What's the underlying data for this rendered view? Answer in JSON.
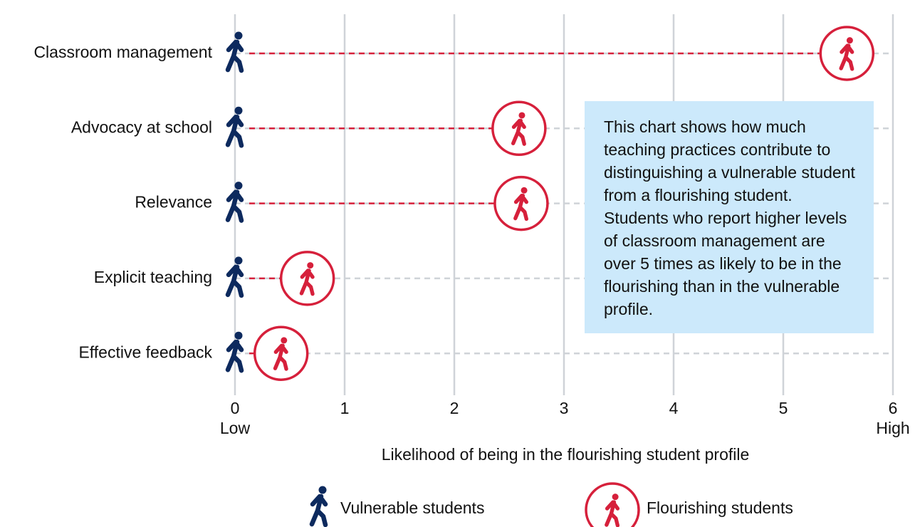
{
  "chart_data": {
    "type": "dumbbell",
    "categories": [
      "Classroom management",
      "Advocacy at school",
      "Relevance",
      "Explicit teaching",
      "Effective feedback"
    ],
    "series": [
      {
        "name": "Vulnerable students",
        "color": "#0d2a5e",
        "values": [
          0,
          0,
          0,
          0,
          0
        ]
      },
      {
        "name": "Flourishing students",
        "color": "#d6203b",
        "values": [
          5.58,
          2.59,
          2.61,
          0.66,
          0.42
        ]
      }
    ],
    "xlim": [
      0,
      6
    ],
    "xticks": [
      0,
      1,
      2,
      3,
      4,
      5,
      6
    ],
    "x_end_labels": [
      "Low",
      "High"
    ],
    "xlabel": "Likelihood of being in the flourishing student profile",
    "annotation": "This chart shows how much teaching practices contribute to distinguishing a vulnerable student from a flourishing student. Students who report higher levels of classroom management are over 5 times as likely to be in the flourishing than in the vulnerable profile.",
    "grid": true
  }
}
